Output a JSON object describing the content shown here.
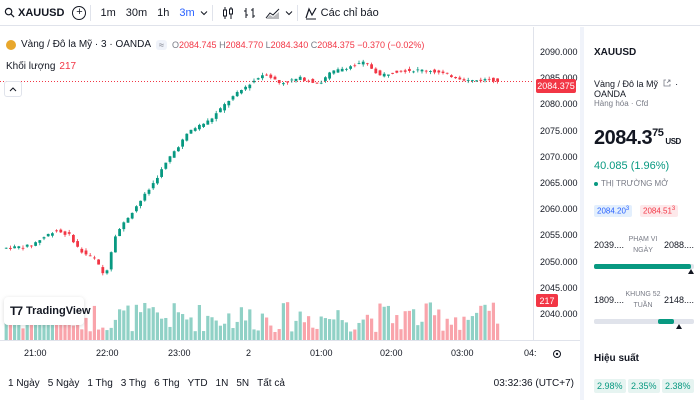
{
  "toolbar": {
    "symbol": "XAUUSD",
    "intervals": [
      "1m",
      "30m",
      "1h",
      "3m"
    ],
    "active_interval": "3m",
    "indicators_label": "Các chỉ báo"
  },
  "legend": {
    "title": "Vàng / Đô la Mỹ · 3 · OANDA",
    "badge": "≈",
    "o_label": "O",
    "o": "2084.745",
    "h_label": "H",
    "h": "2084.770",
    "l_label": "L",
    "l": "2084.340",
    "c_label": "C",
    "c": "2084.375",
    "change": "−0.370 (−0.02%)",
    "volume_label": "Khối lượng",
    "volume": "217"
  },
  "price_axis": {
    "ticks": [
      "2090.000",
      "2085.000",
      "2080.000",
      "2075.000",
      "2070.000",
      "2065.000",
      "2060.000",
      "2055.000",
      "2050.000",
      "2045.000",
      "2040.000"
    ],
    "last_price": "2084.375",
    "last_volume": "217"
  },
  "time_axis": {
    "ticks": [
      "21:00",
      "22:00",
      "23:00",
      "2",
      "01:00",
      "02:00",
      "03:00",
      "04:"
    ]
  },
  "watermark": "TradingView",
  "bottom": {
    "ranges": [
      "1 Ngày",
      "5 Ngày",
      "1 Thg",
      "3 Thg",
      "6 Thg",
      "YTD",
      "1N",
      "5N",
      "Tất cả"
    ],
    "clock": "03:32:36 (UTC+7)"
  },
  "panel": {
    "symbol": "XAUUSD",
    "name": "Vàng / Đô la Mỹ",
    "exchange": "OANDA",
    "category": "Hàng hóa · Cfd",
    "price_main": "2084.3",
    "price_frac": "75",
    "currency": "USD",
    "change": "40.085 (1.96%)",
    "market_status": "THỊ TRƯỜNG MỞ",
    "bid": "2084.20",
    "bid_sup": "3",
    "ask": "2084.51",
    "ask_sup": "3",
    "day_range": {
      "low": "2039....",
      "high": "2088....",
      "label": "PHẠM VI NGÀY",
      "position": 0.97
    },
    "week52_range": {
      "low": "1809....",
      "high": "2148....",
      "label": "KHUNG 52 TUẦN",
      "position": 0.8
    },
    "performance_title": "Hiệu suất",
    "performance": [
      "2.98%",
      "2.35%",
      "2.38%"
    ]
  },
  "colors": {
    "up": "#089981",
    "down": "#f23645",
    "accent": "#2962ff"
  }
}
